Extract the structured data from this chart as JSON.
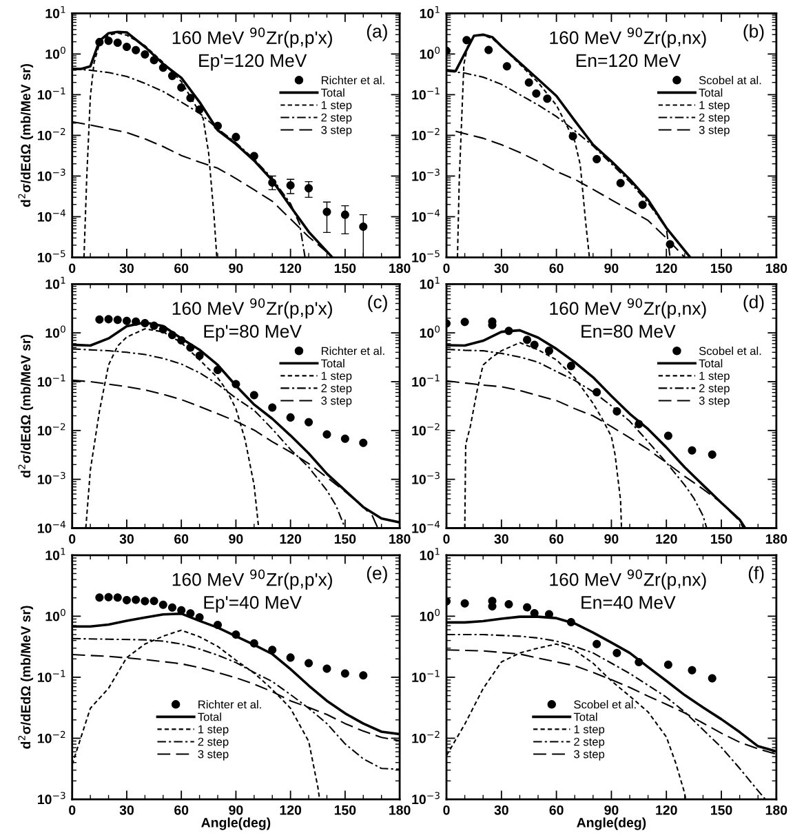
{
  "chart_data": [
    {
      "type": "line",
      "title": "160 MeV $^{90}$Zr(p,p'x)",
      "subtitle": "Ep'=120 MeV",
      "annotations": [
        "(a)"
      ],
      "ylabel": "d$^{2}$σ/dEdΩ (mb/MeV sr)",
      "xlim": [
        0,
        180
      ],
      "xticks": [
        0,
        30,
        60,
        90,
        120,
        150,
        180
      ],
      "ylim": [
        1e-05,
        10
      ],
      "yticks": [
        {
          "value": 1e-05,
          "label": "10$^{−5}$"
        },
        {
          "value": 0.0001,
          "label": "10$^{−4}$"
        },
        {
          "value": 0.001,
          "label": "10$^{−3}$"
        },
        {
          "value": 0.01,
          "label": "10$^{−2}$"
        },
        {
          "value": 0.1,
          "label": "10$^{−1}$"
        },
        {
          "value": 1,
          "label": "10$^{0}$"
        },
        {
          "value": 10,
          "label": "10$^{1}$"
        }
      ],
      "log": "y",
      "legend": "right",
      "series": [
        {
          "name": "Richter et al.",
          "type": "scatter",
          "marker": "circle",
          "color": "#000000",
          "x": [
            15,
            20,
            25,
            30,
            35,
            40,
            45,
            50,
            55,
            60,
            65,
            70,
            80,
            90,
            100,
            110,
            120,
            130,
            140,
            150,
            160
          ],
          "values": [
            1.96,
            2.1,
            1.9,
            1.5,
            1.25,
            0.98,
            0.71,
            0.46,
            0.29,
            0.15,
            0.083,
            0.043,
            0.017,
            0.0091,
            0.0031,
            0.00069,
            0.00059,
            0.0005,
            0.000131,
            0.000112,
            5.7e-05
          ],
          "errors": [
            null,
            null,
            null,
            null,
            null,
            null,
            null,
            null,
            null,
            null,
            null,
            null,
            null,
            null,
            null,
            [
              0.00046,
              0.001
            ],
            [
              0.00037,
              0.00083
            ],
            [
              0.0003,
              0.00073
            ],
            [
              4.1e-05,
              0.00023
            ],
            [
              3.8e-05,
              0.000186
            ],
            [
              1e-05,
              0.000112
            ]
          ]
        },
        {
          "name": "Total",
          "color": "#000000",
          "line_style": "solid",
          "x": [
            0,
            5,
            10,
            15,
            20,
            25,
            30,
            40,
            50,
            60,
            70,
            80,
            90,
            100,
            110,
            120,
            130,
            143
          ],
          "values": [
            0.43,
            0.43,
            0.5,
            2.1,
            3.25,
            3.5,
            3.4,
            1.5,
            0.57,
            0.26,
            0.066,
            0.0134,
            0.0061,
            0.0024,
            0.00078,
            0.000178,
            4.26e-05,
            1e-05
          ]
        },
        {
          "name": "1 step",
          "color": "#000000",
          "line_style": "dashed",
          "x": [
            6.5,
            8,
            10,
            12,
            15,
            20,
            25,
            30,
            40,
            50,
            60,
            70,
            72,
            75,
            78,
            79.5
          ],
          "values": [
            1e-05,
            0.0009,
            0.09,
            0.6,
            1.8,
            2.9,
            3.3,
            2.9,
            1.6,
            0.62,
            0.21,
            0.037,
            0.026,
            0.0037,
            0.0001,
            1e-05
          ]
        },
        {
          "name": "2 step",
          "color": "#000000",
          "line_style": "dashdot",
          "x": [
            0,
            10,
            20,
            30,
            40,
            50,
            60,
            70,
            80,
            90,
            100,
            110,
            120,
            125,
            128
          ],
          "values": [
            0.43,
            0.4,
            0.35,
            0.28,
            0.19,
            0.12,
            0.066,
            0.035,
            0.0145,
            0.0066,
            0.0026,
            0.00087,
            0.00021,
            6.6e-05,
            1e-05
          ]
        },
        {
          "name": "3 step",
          "color": "#000000",
          "line_style": "longdash",
          "x": [
            0,
            10,
            20,
            30,
            40,
            50,
            60,
            70,
            80,
            90,
            100,
            110,
            120,
            130,
            140,
            142
          ],
          "values": [
            0.0215,
            0.018,
            0.0145,
            0.0117,
            0.0082,
            0.0053,
            0.0032,
            0.0022,
            0.00156,
            0.00087,
            0.00046,
            0.00024,
            8.8e-05,
            3.2e-05,
            1.35e-05,
            1e-05
          ]
        }
      ]
    },
    {
      "type": "line",
      "title": "160 MeV $^{90}$Zr(p,nx)",
      "subtitle": "En=120 MeV",
      "annotations": [
        "(b)"
      ],
      "xlim": [
        0,
        180
      ],
      "xticks": [
        0,
        30,
        60,
        90,
        120,
        150,
        180
      ],
      "ylim": [
        1e-05,
        10
      ],
      "yticks": [
        {
          "value": 1e-05,
          "label": "10$^{−5}$"
        },
        {
          "value": 0.0001,
          "label": "10$^{−4}$"
        },
        {
          "value": 0.001,
          "label": "10$^{−3}$"
        },
        {
          "value": 0.01,
          "label": "10$^{−2}$"
        },
        {
          "value": 0.1,
          "label": "10$^{−1}$"
        },
        {
          "value": 1,
          "label": "10$^{0}$"
        },
        {
          "value": 10,
          "label": "10$^{1}$"
        }
      ],
      "log": "y",
      "legend": "right",
      "series": [
        {
          "name": "Scobel at al.",
          "type": "scatter",
          "marker": "circle",
          "color": "#000000",
          "x": [
            0,
            11,
            23,
            33,
            45,
            49,
            55,
            69,
            82,
            95,
            107,
            122
          ],
          "values": [
            1.2,
            2.2,
            1.26,
            0.5,
            0.2,
            0.107,
            0.08,
            0.0095,
            0.0026,
            0.00067,
            0.000196,
            2.1e-05
          ]
        },
        {
          "name": "Total",
          "color": "#000000",
          "line_style": "solid",
          "x": [
            0,
            5,
            15,
            20,
            25,
            30,
            40,
            50,
            60,
            70,
            80,
            90,
            100,
            110,
            120,
            133
          ],
          "values": [
            0.4,
            0.38,
            2.8,
            3.0,
            2.6,
            1.55,
            0.61,
            0.24,
            0.093,
            0.023,
            0.0059,
            0.0023,
            0.00083,
            0.00026,
            5.3e-05,
            1e-05
          ]
        },
        {
          "name": "1 step",
          "color": "#000000",
          "line_style": "dashed",
          "x": [
            6,
            7,
            9.5,
            12,
            15,
            20,
            25,
            30,
            40,
            50,
            60,
            65,
            70,
            73,
            76,
            78
          ],
          "values": [
            1e-05,
            0.00083,
            0.56,
            1.9,
            2.8,
            2.9,
            2.4,
            1.55,
            0.56,
            0.2,
            0.055,
            0.0198,
            0.0072,
            0.0019,
            7e-05,
            1e-05
          ]
        },
        {
          "name": "2 step",
          "color": "#000000",
          "line_style": "dashdot",
          "x": [
            0,
            10,
            20,
            30,
            40,
            50,
            60,
            70,
            80,
            90,
            100,
            110,
            120,
            122
          ],
          "values": [
            0.38,
            0.34,
            0.27,
            0.18,
            0.1,
            0.056,
            0.029,
            0.013,
            0.0055,
            0.002,
            0.00072,
            0.00022,
            5.2e-05,
            1e-05
          ]
        },
        {
          "name": "3 step",
          "color": "#000000",
          "line_style": "longdash",
          "x": [
            5,
            10,
            20,
            30,
            40,
            50,
            60,
            70,
            80,
            90,
            100,
            110,
            120,
            130
          ],
          "values": [
            0.0126,
            0.011,
            0.0085,
            0.0059,
            0.0038,
            0.0023,
            0.0013,
            0.00083,
            0.00047,
            0.00026,
            0.000146,
            8.1e-05,
            3e-05,
            1e-05
          ]
        }
      ]
    },
    {
      "type": "line",
      "title": "160 MeV $^{90}$Zr(p,p'x)",
      "subtitle": "Ep'=80 MeV",
      "annotations": [
        "(c)"
      ],
      "ylabel": "d$^{2}$σ/dEdΩ (mb/MeV sr)",
      "xlim": [
        0,
        180
      ],
      "xticks": [
        0,
        30,
        60,
        90,
        120,
        150,
        180
      ],
      "ylim": [
        0.0001,
        10
      ],
      "yticks": [
        {
          "value": 0.0001,
          "label": "10$^{−4}$"
        },
        {
          "value": 0.001,
          "label": "10$^{−3}$"
        },
        {
          "value": 0.01,
          "label": "10$^{−2}$"
        },
        {
          "value": 0.1,
          "label": "10$^{−1}$"
        },
        {
          "value": 1,
          "label": "10$^{0}$"
        },
        {
          "value": 10,
          "label": "10$^{1}$"
        }
      ],
      "log": "y",
      "legend": "right",
      "series": [
        {
          "name": "Richter et al.",
          "type": "scatter",
          "marker": "circle",
          "color": "#000000",
          "x": [
            15,
            20,
            25,
            30,
            35,
            40,
            45,
            50,
            55,
            60,
            65,
            70,
            80,
            90,
            100,
            110,
            120,
            130,
            140,
            150,
            160
          ],
          "values": [
            1.87,
            1.9,
            1.85,
            1.76,
            1.7,
            1.58,
            1.4,
            1.18,
            0.9,
            0.7,
            0.5,
            0.34,
            0.174,
            0.089,
            0.053,
            0.0295,
            0.0185,
            0.0148,
            0.0083,
            0.0068,
            0.0056
          ]
        },
        {
          "name": "Total",
          "color": "#000000",
          "line_style": "solid",
          "x": [
            0,
            10,
            20,
            30,
            40,
            50,
            60,
            70,
            80,
            90,
            100,
            110,
            120,
            130,
            140,
            150,
            160,
            170,
            180
          ],
          "values": [
            0.57,
            0.55,
            0.77,
            1.37,
            1.64,
            1.38,
            0.77,
            0.45,
            0.22,
            0.083,
            0.034,
            0.0174,
            0.0079,
            0.0034,
            0.0013,
            0.00059,
            0.00027,
            0.000158,
            0.000131
          ]
        },
        {
          "name": "1 step",
          "color": "#000000",
          "line_style": "dashed",
          "x": [
            7.5,
            10,
            15,
            20,
            25,
            30,
            40,
            50,
            60,
            70,
            80,
            85,
            90,
            95,
            100,
            102.5
          ],
          "values": [
            0.0001,
            0.00155,
            0.025,
            0.22,
            0.54,
            0.82,
            1.21,
            1.05,
            0.63,
            0.28,
            0.12,
            0.066,
            0.028,
            0.0066,
            0.00076,
            0.0001
          ]
        },
        {
          "name": "2 step",
          "color": "#000000",
          "line_style": "dashdot",
          "x": [
            0,
            20,
            30,
            40,
            50,
            60,
            70,
            80,
            90,
            100,
            110,
            120,
            130,
            140,
            145,
            150
          ],
          "values": [
            0.47,
            0.43,
            0.4,
            0.36,
            0.3,
            0.23,
            0.152,
            0.089,
            0.046,
            0.026,
            0.0107,
            0.0041,
            0.00177,
            0.00059,
            0.00029,
            0.0001
          ]
        },
        {
          "name": "3 step",
          "color": "#000000",
          "line_style": "longdash",
          "x": [
            0,
            10,
            20,
            30,
            40,
            50,
            60,
            70,
            80,
            90,
            100,
            110,
            120,
            130,
            140,
            150,
            160,
            165,
            168
          ],
          "values": [
            0.107,
            0.1,
            0.089,
            0.079,
            0.068,
            0.055,
            0.043,
            0.031,
            0.022,
            0.0155,
            0.0102,
            0.0059,
            0.0036,
            0.0021,
            0.0011,
            0.00056,
            0.00027,
            0.000178,
            0.0001
          ]
        }
      ]
    },
    {
      "type": "line",
      "title": "160 MeV $^{90}$Zr(p,nx)",
      "subtitle": "En=80 MeV",
      "annotations": [
        "(d)"
      ],
      "xlim": [
        0,
        180
      ],
      "xticks": [
        0,
        30,
        60,
        90,
        120,
        150,
        180
      ],
      "ylim": [
        0.0001,
        10
      ],
      "yticks": [
        {
          "value": 0.0001,
          "label": "10$^{−4}$"
        },
        {
          "value": 0.001,
          "label": "10$^{−3}$"
        },
        {
          "value": 0.01,
          "label": "10$^{−2}$"
        },
        {
          "value": 0.1,
          "label": "10$^{−1}$"
        },
        {
          "value": 1,
          "label": "10$^{0}$"
        },
        {
          "value": 10,
          "label": "10$^{1}$"
        }
      ],
      "log": "y",
      "legend": "right",
      "series": [
        {
          "name": "Scobel et al.",
          "type": "scatter",
          "marker": "circle",
          "color": "#000000",
          "x": [
            0,
            10,
            25,
            25,
            34,
            44,
            48,
            56,
            68,
            82,
            93,
            105,
            121,
            134,
            145
          ],
          "values": [
            1.56,
            1.68,
            1.7,
            1.45,
            1.1,
            0.72,
            0.57,
            0.43,
            0.21,
            0.061,
            0.0246,
            0.0135,
            0.0078,
            0.0039,
            0.0032
          ]
        },
        {
          "name": "Total",
          "color": "#000000",
          "line_style": "solid",
          "x": [
            0,
            10,
            20,
            30,
            40,
            50,
            60,
            70,
            80,
            90,
            100,
            110,
            120,
            130,
            140,
            150,
            160,
            163
          ],
          "values": [
            0.56,
            0.55,
            0.69,
            1.05,
            1.13,
            0.8,
            0.47,
            0.25,
            0.123,
            0.051,
            0.022,
            0.0107,
            0.0045,
            0.00176,
            0.00076,
            0.00033,
            0.000149,
            0.0001
          ]
        },
        {
          "name": "1 step",
          "color": "#000000",
          "line_style": "dashed",
          "x": [
            10,
            10.5,
            13,
            17,
            20,
            25,
            30,
            40,
            50,
            60,
            70,
            80,
            85,
            90,
            92,
            95,
            95.5
          ],
          "values": [
            0.0001,
            0.0052,
            0.012,
            0.074,
            0.22,
            0.32,
            0.43,
            0.63,
            0.45,
            0.28,
            0.12,
            0.036,
            0.0173,
            0.0075,
            0.0032,
            0.00037,
            0.0001
          ]
        },
        {
          "name": "2 step",
          "color": "#000000",
          "line_style": "dashdot",
          "x": [
            0,
            10,
            20,
            30,
            40,
            50,
            60,
            70,
            80,
            90,
            100,
            110,
            120,
            130,
            135,
            140,
            142
          ],
          "values": [
            0.46,
            0.44,
            0.43,
            0.38,
            0.32,
            0.25,
            0.162,
            0.106,
            0.062,
            0.032,
            0.0155,
            0.0059,
            0.0022,
            0.00076,
            0.00041,
            0.000179,
            0.0001
          ]
        },
        {
          "name": "3 step",
          "color": "#000000",
          "line_style": "longdash",
          "x": [
            0,
            10,
            20,
            30,
            40,
            50,
            60,
            70,
            80,
            90,
            100,
            110,
            120,
            130,
            140,
            150,
            160,
            162
          ],
          "values": [
            0.104,
            0.094,
            0.085,
            0.079,
            0.066,
            0.052,
            0.041,
            0.028,
            0.02,
            0.012,
            0.0071,
            0.0041,
            0.0022,
            0.00115,
            0.00063,
            0.00033,
            0.00014,
            0.0001
          ]
        }
      ]
    },
    {
      "type": "line",
      "title": "160 MeV $^{90}$Zr(p,p'x)",
      "subtitle": "Ep'=40 MeV",
      "annotations": [
        "(e)"
      ],
      "xlabel": "Angle(deg)",
      "ylabel": "d$^{2}$σ/dEdΩ (mb/MeV sr)",
      "xlim": [
        0,
        180
      ],
      "xticks": [
        0,
        30,
        60,
        90,
        120,
        150,
        180
      ],
      "ylim": [
        0.001,
        10
      ],
      "yticks": [
        {
          "value": 0.001,
          "label": "10$^{−3}$"
        },
        {
          "value": 0.01,
          "label": "10$^{−2}$"
        },
        {
          "value": 0.1,
          "label": "10$^{−1}$"
        },
        {
          "value": 1,
          "label": "10$^{0}$"
        },
        {
          "value": 10,
          "label": "10$^{1}$"
        }
      ],
      "log": "y",
      "legend": "bottom",
      "series": [
        {
          "name": "Richter et al.",
          "type": "scatter",
          "marker": "circle",
          "color": "#000000",
          "x": [
            15,
            20,
            25,
            30,
            35,
            40,
            45,
            50,
            55,
            60,
            65,
            70,
            80,
            90,
            100,
            110,
            120,
            130,
            140,
            150,
            160
          ],
          "values": [
            2.02,
            2.05,
            2.02,
            1.83,
            1.86,
            1.77,
            1.78,
            1.54,
            1.39,
            1.25,
            1.11,
            0.96,
            0.72,
            0.5,
            0.36,
            0.28,
            0.21,
            0.17,
            0.138,
            0.115,
            0.107
          ]
        },
        {
          "name": "Total",
          "color": "#000000",
          "line_style": "solid",
          "x": [
            0,
            10,
            20,
            30,
            40,
            50,
            60,
            70,
            80,
            90,
            100,
            110,
            120,
            130,
            140,
            150,
            160,
            170,
            180
          ],
          "values": [
            0.68,
            0.68,
            0.73,
            0.84,
            0.95,
            1.07,
            1.1,
            0.84,
            0.65,
            0.47,
            0.34,
            0.24,
            0.136,
            0.073,
            0.041,
            0.0256,
            0.0174,
            0.0128,
            0.0117
          ]
        },
        {
          "name": "1 step",
          "color": "#000000",
          "line_style": "dashed",
          "x": [
            0,
            10,
            20,
            30,
            40,
            50,
            60,
            70,
            80,
            90,
            100,
            110,
            120,
            130,
            135,
            136
          ],
          "values": [
            0.0037,
            0.031,
            0.066,
            0.21,
            0.35,
            0.47,
            0.59,
            0.46,
            0.32,
            0.19,
            0.117,
            0.063,
            0.031,
            0.0089,
            0.0016,
            0.001
          ]
        },
        {
          "name": "2 step",
          "color": "#000000",
          "line_style": "dashdot",
          "x": [
            0,
            20,
            40,
            50,
            60,
            70,
            80,
            90,
            100,
            110,
            120,
            130,
            140,
            150,
            160,
            170,
            180
          ],
          "values": [
            0.43,
            0.42,
            0.41,
            0.39,
            0.35,
            0.29,
            0.23,
            0.174,
            0.12,
            0.085,
            0.052,
            0.031,
            0.0174,
            0.0081,
            0.0046,
            0.0032,
            0.0031
          ]
        },
        {
          "name": "3 step",
          "color": "#000000",
          "line_style": "longdash",
          "x": [
            0,
            20,
            40,
            50,
            60,
            70,
            80,
            90,
            100,
            110,
            120,
            130,
            140,
            150,
            160,
            170,
            180
          ],
          "values": [
            0.235,
            0.22,
            0.195,
            0.18,
            0.166,
            0.144,
            0.119,
            0.098,
            0.077,
            0.058,
            0.041,
            0.032,
            0.0245,
            0.0174,
            0.0131,
            0.0103,
            0.0091
          ]
        }
      ]
    },
    {
      "type": "line",
      "title": "160 MeV $^{90}$Zr(p,nx)",
      "subtitle": "En=40 MeV",
      "annotations": [
        "(f)"
      ],
      "xlabel": "Angle(deg)",
      "xlim": [
        0,
        180
      ],
      "xticks": [
        0,
        30,
        60,
        90,
        120,
        150,
        180
      ],
      "ylim": [
        0.001,
        10
      ],
      "yticks": [
        {
          "value": 0.001,
          "label": "10$^{−3}$"
        },
        {
          "value": 0.01,
          "label": "10$^{−2}$"
        },
        {
          "value": 0.1,
          "label": "10$^{−1}$"
        },
        {
          "value": 1,
          "label": "10$^{0}$"
        },
        {
          "value": 10,
          "label": "10$^{1}$"
        }
      ],
      "log": "y",
      "legend": "bottom",
      "series": [
        {
          "name": "Scobel et al.",
          "type": "scatter",
          "marker": "circle",
          "color": "#000000",
          "x": [
            0,
            10,
            25,
            25,
            34,
            44,
            48,
            56,
            68,
            82,
            93,
            105,
            121,
            134,
            145
          ],
          "values": [
            1.75,
            1.62,
            1.78,
            1.45,
            1.57,
            1.4,
            1.12,
            1.08,
            0.8,
            0.35,
            0.25,
            0.177,
            0.16,
            0.13,
            0.096
          ]
        },
        {
          "name": "Total",
          "color": "#000000",
          "line_style": "solid",
          "x": [
            0,
            10,
            20,
            30,
            40,
            50,
            60,
            70,
            80,
            90,
            100,
            110,
            120,
            130,
            140,
            150,
            160,
            170,
            180
          ],
          "values": [
            0.79,
            0.79,
            0.83,
            0.91,
            0.98,
            0.98,
            0.93,
            0.76,
            0.54,
            0.37,
            0.25,
            0.147,
            0.087,
            0.051,
            0.032,
            0.0205,
            0.0126,
            0.0074,
            0.0061
          ]
        },
        {
          "name": "1 step",
          "color": "#000000",
          "line_style": "dashed",
          "x": [
            0,
            10,
            20,
            30,
            40,
            50,
            60,
            70,
            80,
            90,
            100,
            110,
            120,
            125,
            130,
            130.5
          ],
          "values": [
            0.0052,
            0.017,
            0.065,
            0.178,
            0.25,
            0.3,
            0.35,
            0.275,
            0.17,
            0.087,
            0.049,
            0.027,
            0.0105,
            0.004,
            0.00125,
            0.001
          ]
        },
        {
          "name": "2 step",
          "color": "#000000",
          "line_style": "dashdot",
          "x": [
            0,
            20,
            40,
            50,
            60,
            70,
            80,
            90,
            100,
            110,
            120,
            130,
            140,
            150,
            160,
            170,
            174
          ],
          "values": [
            0.5,
            0.5,
            0.47,
            0.44,
            0.39,
            0.32,
            0.25,
            0.17,
            0.115,
            0.074,
            0.047,
            0.027,
            0.0138,
            0.0071,
            0.0032,
            0.00138,
            0.001
          ]
        },
        {
          "name": "3 step",
          "color": "#000000",
          "line_style": "longdash",
          "x": [
            0,
            20,
            40,
            50,
            60,
            70,
            80,
            90,
            100,
            110,
            120,
            130,
            140,
            150,
            160,
            170,
            180
          ],
          "values": [
            0.28,
            0.27,
            0.24,
            0.206,
            0.178,
            0.154,
            0.12,
            0.091,
            0.068,
            0.049,
            0.036,
            0.026,
            0.0177,
            0.0121,
            0.0086,
            0.0067,
            0.0055
          ]
        }
      ]
    }
  ]
}
